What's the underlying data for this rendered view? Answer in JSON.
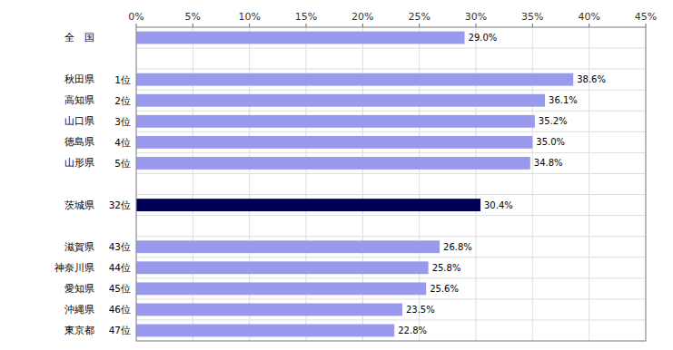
{
  "chart_data": {
    "type": "bar",
    "orientation": "horizontal",
    "categories": [
      "全　国",
      null,
      "秋田県",
      "高知県",
      "山口県",
      "徳島県",
      "山形県",
      null,
      "茨城県",
      null,
      "滋賀県",
      "神奈川県",
      "愛知県",
      "沖縄県",
      "東京都"
    ],
    "ranks": [
      null,
      null,
      "1位",
      "2位",
      "3位",
      "4位",
      "5位",
      null,
      "32位",
      null,
      "43位",
      "44位",
      "45位",
      "46位",
      "47位"
    ],
    "values": [
      29.0,
      null,
      38.6,
      36.1,
      35.2,
      35.0,
      34.8,
      null,
      30.4,
      null,
      26.8,
      25.8,
      25.6,
      23.5,
      22.8
    ],
    "colors": [
      "#9999ee",
      null,
      "#9999ee",
      "#9999ee",
      "#9999ee",
      "#9999ee",
      "#9999ee",
      null,
      "#000055",
      null,
      "#9999ee",
      "#9999ee",
      "#9999ee",
      "#9999ee",
      "#9999ee"
    ],
    "value_labels": [
      "29.0%",
      null,
      "38.6%",
      "36.1%",
      "35.2%",
      "35.0%",
      "34.8%",
      null,
      "30.4%",
      null,
      "26.8%",
      "25.8%",
      "25.6%",
      "23.5%",
      "22.8%"
    ],
    "data_labels": true,
    "xlim": [
      0,
      45
    ],
    "xticks": [
      {
        "value": 0,
        "label": "0%"
      },
      {
        "value": 5,
        "label": "5%"
      },
      {
        "value": 10,
        "label": "10%"
      },
      {
        "value": 15,
        "label": "15%"
      },
      {
        "value": 20,
        "label": "20%"
      },
      {
        "value": 25,
        "label": "25%"
      },
      {
        "value": 30,
        "label": "30%"
      },
      {
        "value": 35,
        "label": "35%"
      },
      {
        "value": 40,
        "label": "40%"
      },
      {
        "value": 45,
        "label": "45%"
      }
    ],
    "grid": true
  }
}
